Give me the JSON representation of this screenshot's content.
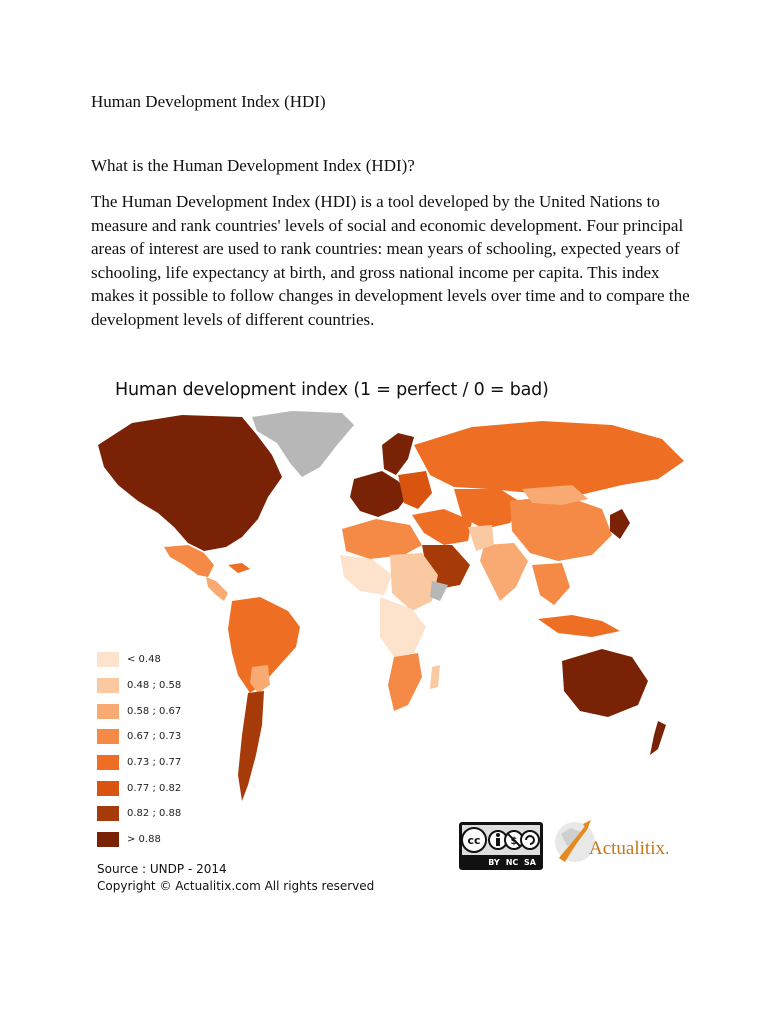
{
  "document": {
    "title": "Human Development Index (HDI)",
    "heading": "What is the Human Development Index (HDI)?",
    "paragraph": "The Human Development Index (HDI) is a tool developed by the United Nations to measure and rank countries' levels of social and economic development. Four principal areas of interest are used to rank countries: mean years of schooling, expected years of schooling, life expectancy at birth, and gross national income per capita. This index makes it possible to follow changes in development levels over time and to compare the development levels of different countries."
  },
  "figure": {
    "title": "Human development index (1 = perfect / 0 = bad)",
    "legend": [
      {
        "label": "< 0.48",
        "color": "#fde3cb"
      },
      {
        "label": "0.48 ; 0.58",
        "color": "#fbc9a1"
      },
      {
        "label": "0.58 ; 0.67",
        "color": "#f8aa72"
      },
      {
        "label": "0.67 ; 0.73",
        "color": "#f48a46"
      },
      {
        "label": "0.73 ; 0.77",
        "color": "#ee6f23"
      },
      {
        "label": "0.77 ; 0.82",
        "color": "#d9540e"
      },
      {
        "label": "0.82 ; 0.88",
        "color": "#a63a08"
      },
      {
        "label": "> 0.88",
        "color": "#7a2205"
      }
    ],
    "no_data_color": "#b7b7b7",
    "source": "Source : UNDP - 2014",
    "copyright": "Copyright © Actualitix.com All rights reserved",
    "cc_license": {
      "symbols": [
        "BY",
        "NC",
        "SA"
      ],
      "cc": "cc"
    },
    "brand": "Actualitix."
  }
}
